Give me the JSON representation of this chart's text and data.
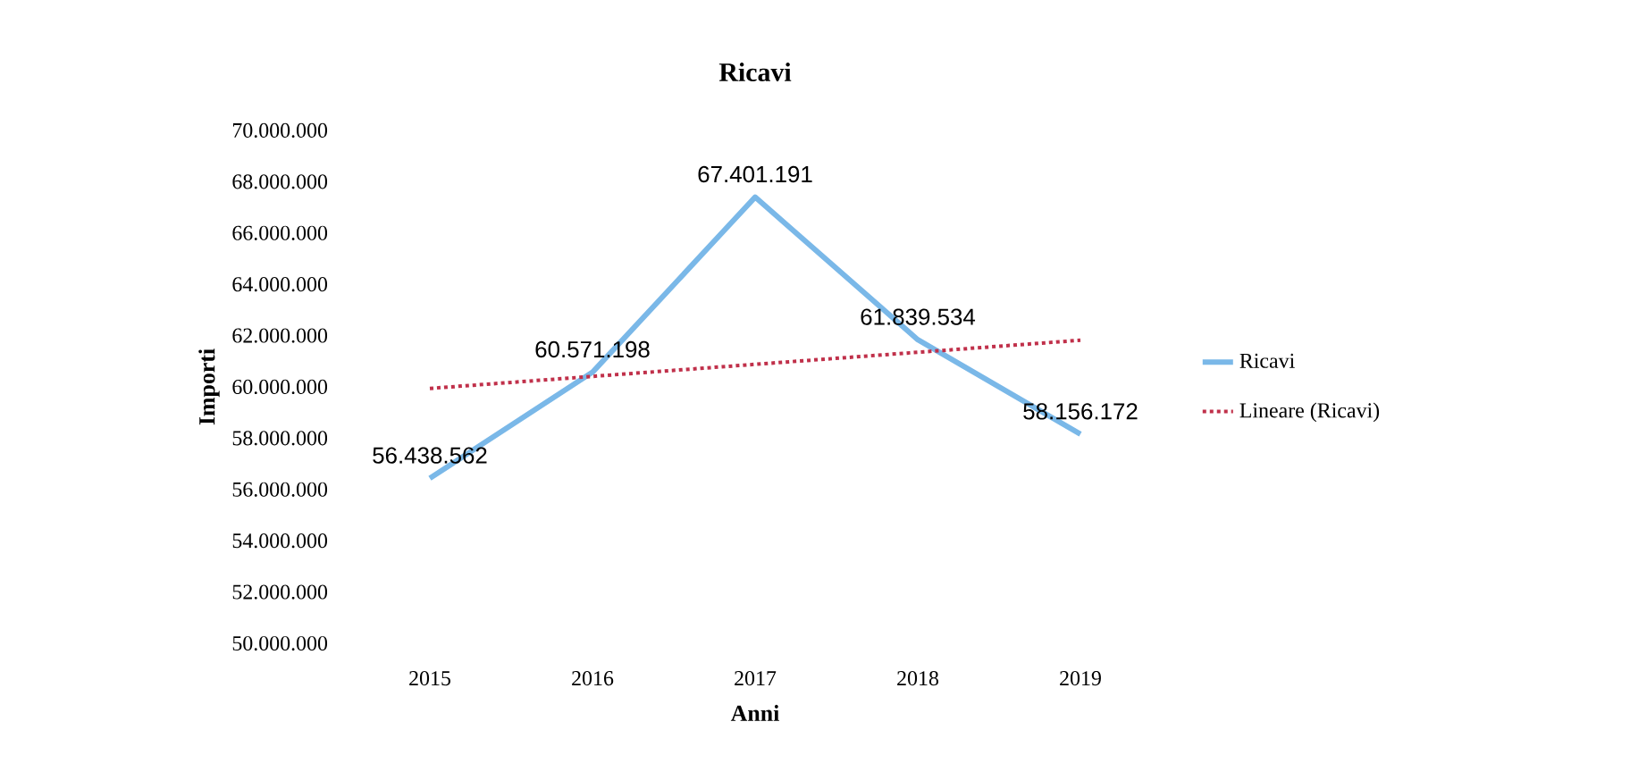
{
  "chart_data": {
    "type": "line",
    "title": "Ricavi",
    "xlabel": "Anni",
    "ylabel": "Importi",
    "categories": [
      "2015",
      "2016",
      "2017",
      "2018",
      "2019"
    ],
    "series": [
      {
        "name": "Ricavi",
        "color": "#7ab8e8",
        "values": [
          56438562,
          60571198,
          67401191,
          61839534,
          58156172
        ],
        "value_labels": [
          "56.438.562",
          "60.571.198",
          "67.401.191",
          "61.839.534",
          "58.156.172"
        ],
        "line_style": "solid"
      },
      {
        "name": "Lineare (Ricavi)",
        "color": "#c0304a",
        "values": [
          59940000,
          60410000,
          60880000,
          61350000,
          61820000
        ],
        "line_style": "dotted"
      }
    ],
    "ylim": [
      50000000,
      70000000
    ],
    "yticks": [
      {
        "value": 50000000,
        "label": "50.000.000"
      },
      {
        "value": 52000000,
        "label": "52.000.000"
      },
      {
        "value": 54000000,
        "label": "54.000.000"
      },
      {
        "value": 56000000,
        "label": "56.000.000"
      },
      {
        "value": 58000000,
        "label": "58.000.000"
      },
      {
        "value": 60000000,
        "label": "60.000.000"
      },
      {
        "value": 62000000,
        "label": "62.000.000"
      },
      {
        "value": 64000000,
        "label": "64.000.000"
      },
      {
        "value": 66000000,
        "label": "66.000.000"
      },
      {
        "value": 68000000,
        "label": "68.000.000"
      },
      {
        "value": 70000000,
        "label": "70.000.000"
      }
    ],
    "legend": "right"
  }
}
